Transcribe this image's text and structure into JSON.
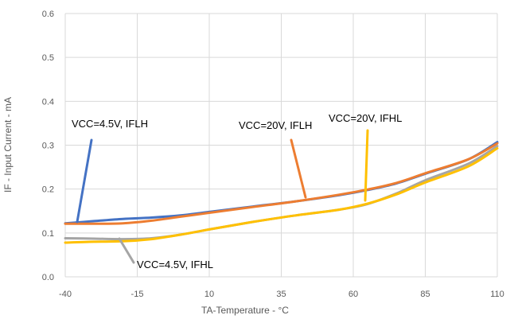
{
  "chart_data": {
    "type": "line",
    "title": "",
    "xlabel": "TA-Temperature - °C",
    "ylabel": "IF - Input Current - mA",
    "xlim": [
      -40,
      110
    ],
    "ylim": [
      0.0,
      0.6
    ],
    "x_ticks": [
      "-40",
      "-15",
      "10",
      "35",
      "60",
      "85",
      "110"
    ],
    "y_ticks": [
      "0.0",
      "0.1",
      "0.2",
      "0.3",
      "0.4",
      "0.5",
      "0.6"
    ],
    "grid": true,
    "series": [
      {
        "name": "VCC=4.5V, IFLH",
        "color": "#4472C4",
        "x": [
          -40,
          -30,
          -20,
          -10,
          0,
          10,
          25,
          40,
          55,
          65,
          75,
          85,
          100,
          110
        ],
        "y": [
          0.122,
          0.127,
          0.132,
          0.135,
          0.14,
          0.148,
          0.16,
          0.172,
          0.186,
          0.198,
          0.213,
          0.235,
          0.268,
          0.307
        ]
      },
      {
        "name": "VCC=20V, IFLH",
        "color": "#ED7D31",
        "x": [
          -40,
          -30,
          -20,
          -10,
          0,
          10,
          25,
          40,
          55,
          65,
          75,
          85,
          100,
          110
        ],
        "y": [
          0.121,
          0.121,
          0.122,
          0.128,
          0.137,
          0.146,
          0.159,
          0.172,
          0.187,
          0.199,
          0.214,
          0.236,
          0.268,
          0.304
        ]
      },
      {
        "name": "VCC=4.5V, IFHL",
        "color": "#A5A5A5",
        "x": [
          -40,
          -30,
          -20,
          -10,
          0,
          10,
          25,
          40,
          55,
          65,
          75,
          85,
          100,
          110
        ],
        "y": [
          0.088,
          0.087,
          0.086,
          0.088,
          0.096,
          0.108,
          0.125,
          0.14,
          0.153,
          0.166,
          0.19,
          0.22,
          0.258,
          0.298
        ]
      },
      {
        "name": "VCC=20V, IFHL",
        "color": "#FFC000",
        "x": [
          -40,
          -30,
          -20,
          -10,
          0,
          10,
          25,
          40,
          55,
          65,
          75,
          85,
          100,
          110
        ],
        "y": [
          0.078,
          0.08,
          0.081,
          0.086,
          0.096,
          0.108,
          0.125,
          0.14,
          0.153,
          0.167,
          0.188,
          0.215,
          0.252,
          0.293
        ]
      }
    ],
    "annotations": [
      {
        "text": "VCC=4.5V, IFLH",
        "series": 0
      },
      {
        "text": "VCC=20V, IFLH",
        "series": 1
      },
      {
        "text": "VCC=4.5V, IFHL",
        "series": 2
      },
      {
        "text": "VCC=20V, IFHL",
        "series": 3
      }
    ]
  }
}
